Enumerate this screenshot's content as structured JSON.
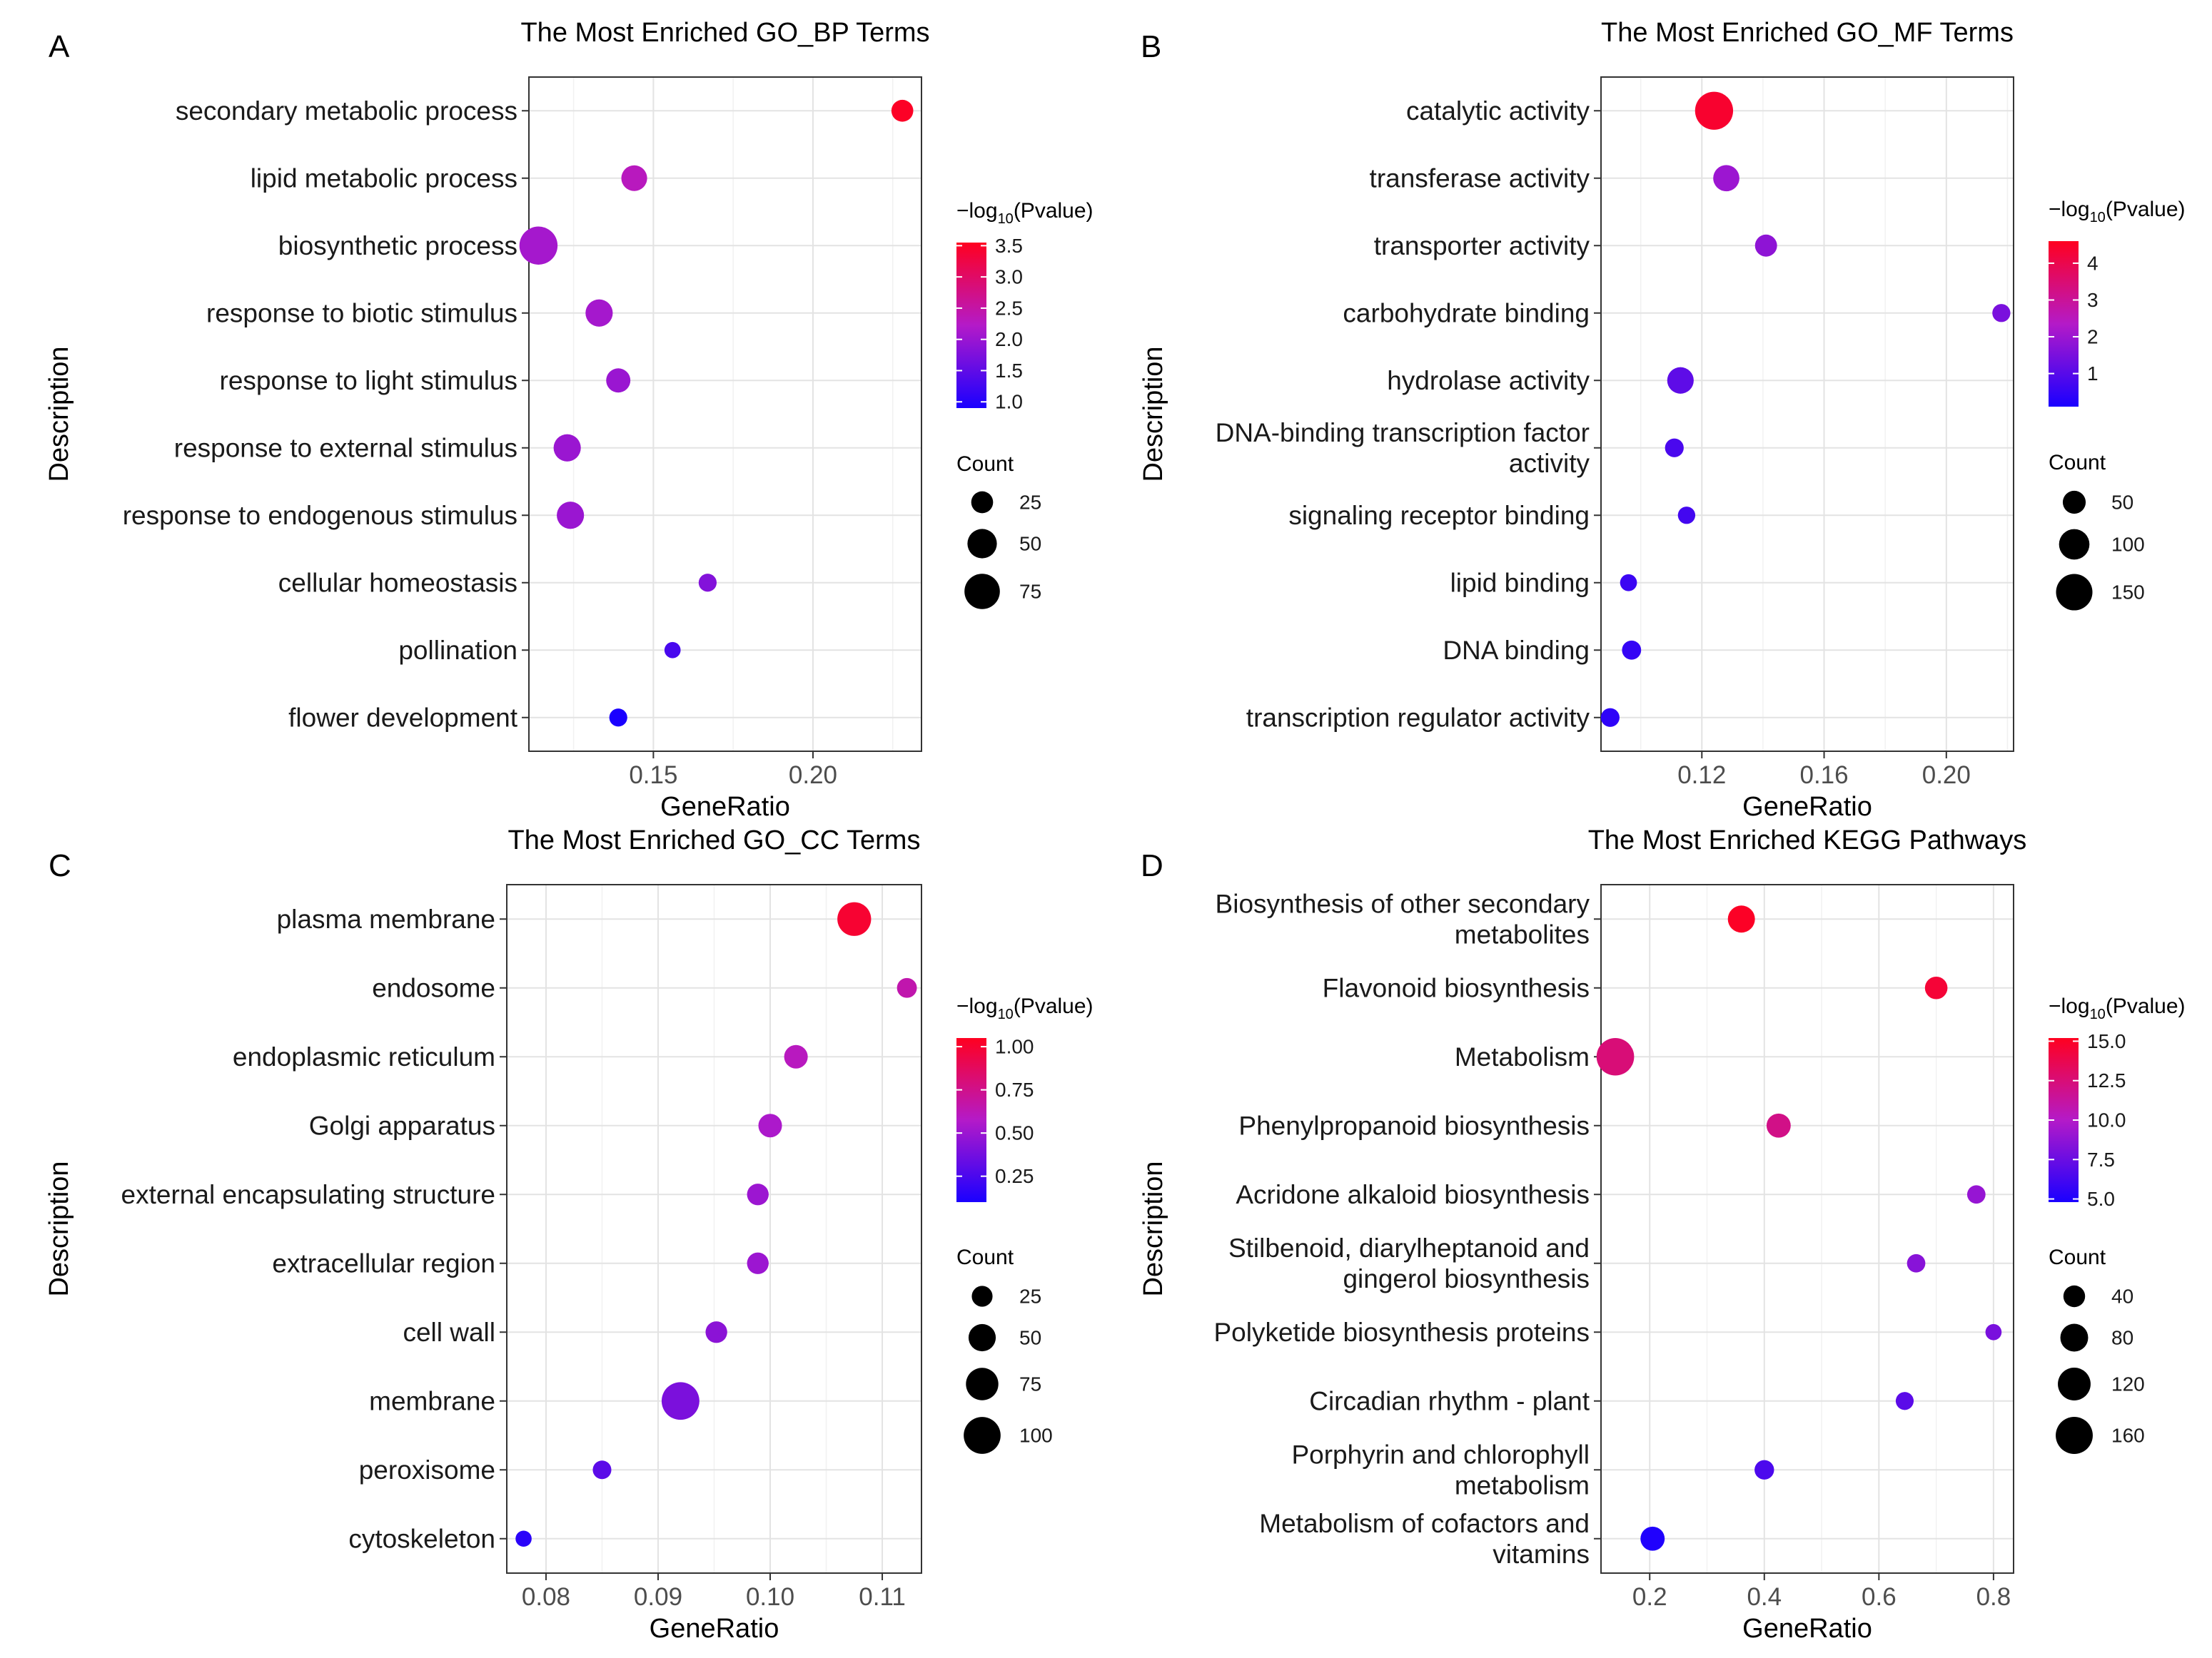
{
  "chart_data": [
    {
      "panel": "A",
      "type": "scatter",
      "title": "The Most Enriched GO_BP Terms",
      "xlabel": "GeneRatio",
      "ylabel": "Description",
      "xlim": [
        0.111,
        0.234
      ],
      "xticks": [
        0.15,
        0.2
      ],
      "xtick_labels": [
        "0.15",
        "0.20"
      ],
      "color_legend": {
        "title_prefix": "−log",
        "title_sub": "10",
        "title_suffix": "(Pvalue)",
        "min": 0.9,
        "max": 3.55,
        "ticks": [
          1.0,
          1.5,
          2.0,
          2.5,
          3.0,
          3.5
        ],
        "tick_labels": [
          "1.0",
          "1.5",
          "2.0",
          "2.5",
          "3.0",
          "3.5"
        ]
      },
      "size_legend": {
        "title": "Count",
        "values": [
          25,
          50,
          75
        ],
        "labels": [
          "25",
          "50",
          "75"
        ]
      },
      "count_range": [
        10,
        90
      ],
      "points": [
        {
          "label": "secondary metabolic process",
          "x": 0.228,
          "count": 25,
          "pval": 3.5
        },
        {
          "label": "lipid metabolic process",
          "x": 0.144,
          "count": 37,
          "pval": 2.3
        },
        {
          "label": "biosynthetic process",
          "x": 0.114,
          "count": 88,
          "pval": 2.1
        },
        {
          "label": "response to biotic stimulus",
          "x": 0.133,
          "count": 42,
          "pval": 2.1
        },
        {
          "label": "response to light stimulus",
          "x": 0.139,
          "count": 32,
          "pval": 2.0
        },
        {
          "label": "response to external stimulus",
          "x": 0.123,
          "count": 42,
          "pval": 2.0
        },
        {
          "label": "response to endogenous stimulus",
          "x": 0.124,
          "count": 42,
          "pval": 2.0
        },
        {
          "label": "cellular homeostasis",
          "x": 0.167,
          "count": 15,
          "pval": 1.8
        },
        {
          "label": "pollination",
          "x": 0.156,
          "count": 11,
          "pval": 1.3
        },
        {
          "label": "flower development",
          "x": 0.139,
          "count": 15,
          "pval": 0.9
        }
      ]
    },
    {
      "panel": "B",
      "type": "scatter",
      "title": "The Most Enriched GO_MF Terms",
      "xlabel": "GeneRatio",
      "ylabel": "Description",
      "xlim": [
        0.087,
        0.222
      ],
      "xticks": [
        0.12,
        0.16,
        0.2
      ],
      "xtick_labels": [
        "0.12",
        "0.16",
        "0.20"
      ],
      "color_legend": {
        "title_prefix": "−log",
        "title_sub": "10",
        "title_suffix": "(Pvalue)",
        "min": 0.1,
        "max": 4.6,
        "ticks": [
          1,
          2,
          3,
          4
        ],
        "tick_labels": [
          "1",
          "2",
          "3",
          "4"
        ]
      },
      "size_legend": {
        "title": "Count",
        "values": [
          50,
          100,
          150
        ],
        "labels": [
          "50",
          "100",
          "150"
        ]
      },
      "count_range": [
        15,
        170
      ],
      "points": [
        {
          "label": "catalytic activity",
          "x": 0.124,
          "count": 165,
          "pval": 4.4
        },
        {
          "label": "transferase activity",
          "x": 0.128,
          "count": 70,
          "pval": 2.0
        },
        {
          "label": "transporter activity",
          "x": 0.141,
          "count": 45,
          "pval": 1.8
        },
        {
          "label": "carbohydrate binding",
          "x": 0.218,
          "count": 25,
          "pval": 1.5
        },
        {
          "label": "hydrolase activity",
          "x": 0.113,
          "count": 72,
          "pval": 1.1
        },
        {
          "label": "DNA-binding transcription factor activity",
          "x": 0.111,
          "count": 28,
          "pval": 0.8
        },
        {
          "label": "signaling receptor binding",
          "x": 0.115,
          "count": 22,
          "pval": 0.7
        },
        {
          "label": "lipid binding",
          "x": 0.096,
          "count": 20,
          "pval": 0.6
        },
        {
          "label": "DNA binding",
          "x": 0.097,
          "count": 30,
          "pval": 0.5
        },
        {
          "label": "transcription regulator activity",
          "x": 0.09,
          "count": 28,
          "pval": 0.4
        }
      ]
    },
    {
      "panel": "C",
      "type": "scatter",
      "title": "The Most Enriched GO_CC Terms",
      "xlabel": "GeneRatio",
      "ylabel": "Description",
      "xlim": [
        0.0765,
        0.1135
      ],
      "xticks": [
        0.08,
        0.09,
        0.1,
        0.11
      ],
      "xtick_labels": [
        "0.08",
        "0.09",
        "0.10",
        "0.11"
      ],
      "color_legend": {
        "title_prefix": "−log",
        "title_sub": "10",
        "title_suffix": "(Pvalue)",
        "min": 0.1,
        "max": 1.05,
        "ticks": [
          0.25,
          0.5,
          0.75,
          1.0
        ],
        "tick_labels": [
          "0.25",
          "0.50",
          "0.75",
          "1.00"
        ]
      },
      "size_legend": {
        "title": "Count",
        "values": [
          25,
          50,
          75,
          100
        ],
        "labels": [
          "25",
          "50",
          "75",
          "100"
        ]
      },
      "count_range": [
        10,
        110
      ],
      "points": [
        {
          "label": "plasma membrane",
          "x": 0.1075,
          "count": 82,
          "pval": 1.0
        },
        {
          "label": "endosome",
          "x": 0.1122,
          "count": 22,
          "pval": 0.65
        },
        {
          "label": "endoplasmic reticulum",
          "x": 0.1023,
          "count": 35,
          "pval": 0.6
        },
        {
          "label": "Golgi apparatus",
          "x": 0.1,
          "count": 35,
          "pval": 0.55
        },
        {
          "label": "external encapsulating structure",
          "x": 0.0989,
          "count": 28,
          "pval": 0.5
        },
        {
          "label": "extracellular region",
          "x": 0.0989,
          "count": 28,
          "pval": 0.5
        },
        {
          "label": "cell wall",
          "x": 0.0952,
          "count": 28,
          "pval": 0.45
        },
        {
          "label": "membrane",
          "x": 0.092,
          "count": 105,
          "pval": 0.4
        },
        {
          "label": "peroxisome",
          "x": 0.085,
          "count": 18,
          "pval": 0.3
        },
        {
          "label": "cytoskeleton",
          "x": 0.078,
          "count": 11,
          "pval": 0.15
        }
      ]
    },
    {
      "panel": "D",
      "type": "scatter",
      "title": "The Most Enriched KEGG Pathways",
      "xlabel": "GeneRatio",
      "ylabel": "Description",
      "xlim": [
        0.115,
        0.835
      ],
      "xticks": [
        0.2,
        0.4,
        0.6,
        0.8
      ],
      "xtick_labels": [
        "0.2",
        "0.4",
        "0.6",
        "0.8"
      ],
      "color_legend": {
        "title_prefix": "−log",
        "title_sub": "10",
        "title_suffix": "(Pvalue)",
        "min": 4.8,
        "max": 15.2,
        "ticks": [
          5.0,
          7.5,
          10.0,
          12.5,
          15.0
        ],
        "tick_labels": [
          "5.0",
          "7.5",
          "10.0",
          "12.5",
          "15.0"
        ]
      },
      "size_legend": {
        "title": "Count",
        "values": [
          40,
          80,
          120,
          160
        ],
        "labels": [
          "40",
          "80",
          "120",
          "160"
        ]
      },
      "count_range": [
        10,
        175
      ],
      "points": [
        {
          "label": "Biosynthesis of other secondary metabolites",
          "x": 0.36,
          "count": 75,
          "pval": 15.0
        },
        {
          "label": "Flavonoid biosynthesis",
          "x": 0.7,
          "count": 45,
          "pval": 14.5
        },
        {
          "label": "Metabolism",
          "x": 0.14,
          "count": 165,
          "pval": 12.5
        },
        {
          "label": "Phenylpropanoid biosynthesis",
          "x": 0.425,
          "count": 55,
          "pval": 12.0
        },
        {
          "label": "Acridone alkaloid biosynthesis",
          "x": 0.77,
          "count": 22,
          "pval": 9.0
        },
        {
          "label": "Stilbenoid, diarylheptanoid and gingerol biosynthesis",
          "x": 0.665,
          "count": 22,
          "pval": 8.5
        },
        {
          "label": "Polyketide biosynthesis proteins",
          "x": 0.8,
          "count": 12,
          "pval": 8.0
        },
        {
          "label": "Circadian rhythm - plant",
          "x": 0.645,
          "count": 20,
          "pval": 7.0
        },
        {
          "label": "Porphyrin and chlorophyll metabolism",
          "x": 0.4,
          "count": 28,
          "pval": 6.5
        },
        {
          "label": "Metabolism of cofactors and vitamins",
          "x": 0.205,
          "count": 55,
          "pval": 5.0
        }
      ]
    }
  ]
}
